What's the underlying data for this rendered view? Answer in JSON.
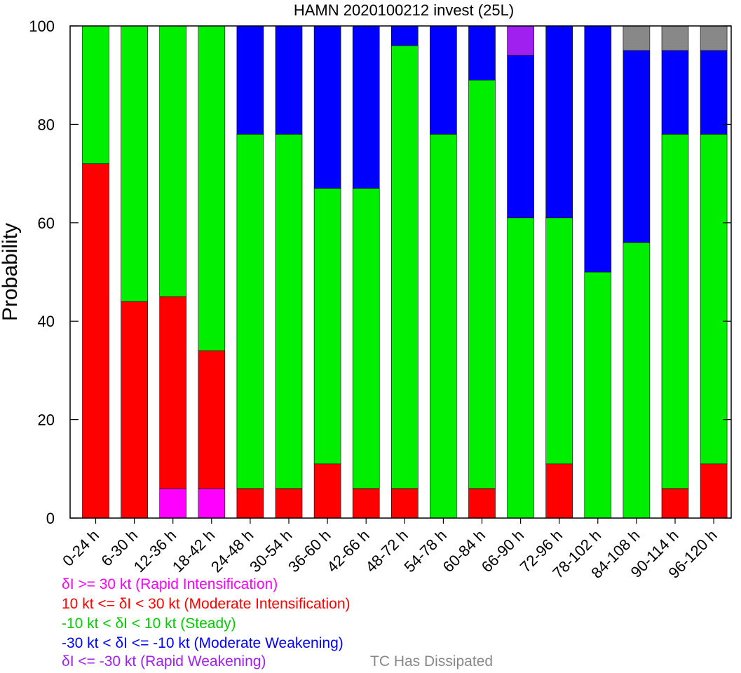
{
  "chart_data": {
    "type": "bar",
    "stacked": true,
    "title": "HAMN 2020100212 invest (25L)",
    "xlabel": "",
    "ylabel": "Probability",
    "ylim": [
      0,
      100
    ],
    "yticks": [
      0,
      20,
      40,
      60,
      80,
      100
    ],
    "categories": [
      "0-24 h",
      "6-30 h",
      "12-36 h",
      "18-42 h",
      "24-48 h",
      "30-54 h",
      "36-60 h",
      "42-66 h",
      "48-72 h",
      "54-78 h",
      "60-84 h",
      "66-90 h",
      "72-96 h",
      "78-102 h",
      "84-108 h",
      "90-114 h",
      "96-120 h"
    ],
    "series": [
      {
        "name": "δI >= 30 kt (Rapid Intensification)",
        "color": "#ff00ff",
        "values": [
          0,
          0,
          6,
          6,
          0,
          0,
          0,
          0,
          0,
          0,
          0,
          0,
          0,
          0,
          0,
          0,
          0
        ]
      },
      {
        "name": "10 kt <= δI < 30 kt (Moderate Intensification)",
        "color": "#ff0000",
        "values": [
          72,
          44,
          39,
          28,
          6,
          6,
          11,
          6,
          6,
          0,
          6,
          0,
          11,
          0,
          0,
          6,
          11
        ]
      },
      {
        "name": "-10 kt < δI < 10 kt (Steady)",
        "color": "#00ee00",
        "values": [
          28,
          56,
          55,
          66,
          72,
          72,
          56,
          61,
          90,
          78,
          83,
          61,
          50,
          50,
          56,
          72,
          67
        ]
      },
      {
        "name": "-30 kt < δI <= -10 kt (Moderate Weakening)",
        "color": "#0000ff",
        "values": [
          0,
          0,
          0,
          0,
          22,
          22,
          33,
          33,
          4,
          22,
          11,
          33,
          39,
          50,
          39,
          17,
          17
        ]
      },
      {
        "name": "δI <= -30 kt (Rapid Weakening)",
        "color": "#a020f0",
        "values": [
          0,
          0,
          0,
          0,
          0,
          0,
          0,
          0,
          0,
          0,
          0,
          6,
          0,
          0,
          0,
          0,
          0
        ]
      },
      {
        "name": "TC Has Dissipated",
        "color": "#888888",
        "values": [
          0,
          0,
          0,
          0,
          0,
          0,
          0,
          0,
          0,
          0,
          0,
          0,
          0,
          0,
          5,
          5,
          5
        ]
      }
    ],
    "legend_position": "bottom-left",
    "grid": false
  }
}
